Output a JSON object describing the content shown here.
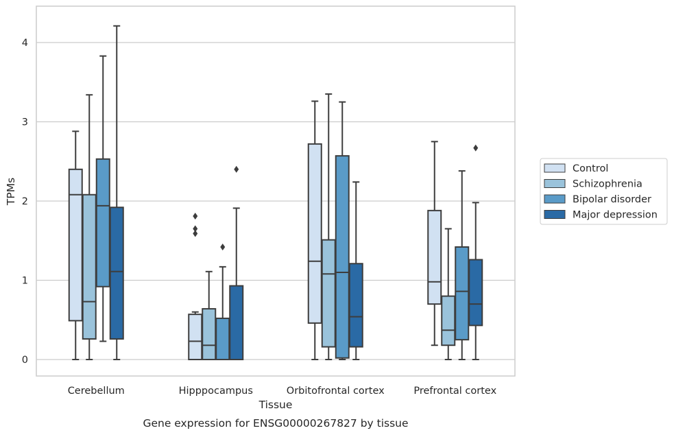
{
  "caption": "Gene expression for ENSG00000267827 by tissue",
  "chart_data": {
    "type": "boxplot",
    "xlabel": "Tissue",
    "ylabel": "TPMs",
    "ylim": [
      -0.2,
      4.3
    ],
    "yticks": [
      0,
      1,
      2,
      3,
      4
    ],
    "grid": "horizontal",
    "legend_position": "right",
    "categories": [
      "Cerebellum",
      "Hipppocampus",
      "Orbitofrontal cortex",
      "Prefrontal cortex"
    ],
    "series": [
      {
        "name": "Control",
        "color": "#d1e1f2",
        "boxes": [
          {
            "whislo": 0.0,
            "q1": 0.49,
            "med": 2.08,
            "q3": 2.4,
            "whishi": 2.88,
            "fliers": []
          },
          {
            "whislo": 0.0,
            "q1": 0.0,
            "med": 0.23,
            "q3": 0.57,
            "whishi": 0.6,
            "fliers": [
              1.59,
              1.65,
              1.81
            ]
          },
          {
            "whislo": 0.0,
            "q1": 0.46,
            "med": 1.24,
            "q3": 2.72,
            "whishi": 3.26,
            "fliers": []
          },
          {
            "whislo": 0.18,
            "q1": 0.7,
            "med": 0.98,
            "q3": 1.88,
            "whishi": 2.75,
            "fliers": []
          }
        ]
      },
      {
        "name": "Schizophrenia",
        "color": "#9ac3db",
        "boxes": [
          {
            "whislo": 0.0,
            "q1": 0.26,
            "med": 0.73,
            "q3": 2.08,
            "whishi": 3.34,
            "fliers": []
          },
          {
            "whislo": 0.0,
            "q1": 0.0,
            "med": 0.18,
            "q3": 0.64,
            "whishi": 1.11,
            "fliers": []
          },
          {
            "whislo": 0.0,
            "q1": 0.16,
            "med": 1.08,
            "q3": 1.51,
            "whishi": 3.35,
            "fliers": []
          },
          {
            "whislo": 0.0,
            "q1": 0.18,
            "med": 0.37,
            "q3": 0.8,
            "whishi": 1.65,
            "fliers": []
          }
        ]
      },
      {
        "name": "Bipolar disorder",
        "color": "#5a9bc8",
        "boxes": [
          {
            "whislo": 0.23,
            "q1": 0.92,
            "med": 1.94,
            "q3": 2.53,
            "whishi": 3.83,
            "fliers": []
          },
          {
            "whislo": 0.0,
            "q1": 0.0,
            "med": 0.0,
            "q3": 0.52,
            "whishi": 1.17,
            "fliers": [
              1.42
            ]
          },
          {
            "whislo": 0.0,
            "q1": 0.02,
            "med": 1.1,
            "q3": 2.57,
            "whishi": 3.25,
            "fliers": []
          },
          {
            "whislo": 0.0,
            "q1": 0.25,
            "med": 0.86,
            "q3": 1.42,
            "whishi": 2.38,
            "fliers": []
          }
        ]
      },
      {
        "name": "Major depression",
        "color": "#2a6aa5",
        "boxes": [
          {
            "whislo": 0.0,
            "q1": 0.26,
            "med": 1.11,
            "q3": 1.92,
            "whishi": 4.21,
            "fliers": []
          },
          {
            "whislo": 0.0,
            "q1": 0.0,
            "med": 0.0,
            "q3": 0.93,
            "whishi": 1.91,
            "fliers": [
              2.4
            ]
          },
          {
            "whislo": 0.0,
            "q1": 0.16,
            "med": 0.54,
            "q3": 1.21,
            "whishi": 2.24,
            "fliers": []
          },
          {
            "whislo": 0.0,
            "q1": 0.43,
            "med": 0.7,
            "q3": 1.26,
            "whishi": 1.98,
            "fliers": [
              2.67
            ]
          }
        ]
      }
    ]
  }
}
